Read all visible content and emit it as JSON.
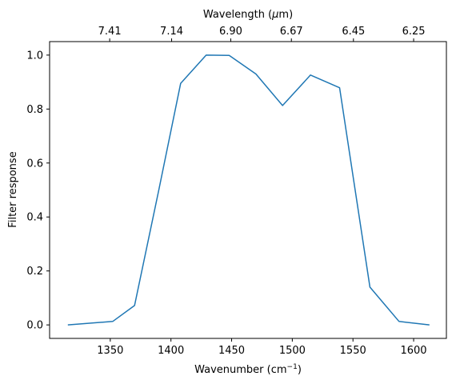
{
  "chart_data": {
    "type": "line",
    "xlabel_text": "Wavenumber (cm",
    "xlabel_sup": "−1",
    "xlabel_close": ")",
    "ylabel": "Filter response",
    "top_xlabel_prefix": "Wavelength (",
    "top_xlabel_mu": "μ",
    "top_xlabel_suffix": "m)",
    "xlim": [
      1300,
      1627
    ],
    "ylim": [
      -0.05,
      1.05
    ],
    "x_ticks": [
      1350,
      1400,
      1450,
      1500,
      1550,
      1600
    ],
    "x_tick_labels": [
      "1350",
      "1400",
      "1450",
      "1500",
      "1550",
      "1600"
    ],
    "y_ticks": [
      0.0,
      0.2,
      0.4,
      0.6,
      0.8,
      1.0
    ],
    "y_tick_labels": [
      "0.0",
      "0.2",
      "0.4",
      "0.6",
      "0.8",
      "1.0"
    ],
    "top_ticks": [
      7.41,
      7.14,
      6.9,
      6.67,
      6.45,
      6.25
    ],
    "top_tick_labels": [
      "7.41",
      "7.14",
      "6.90",
      "6.67",
      "6.45",
      "6.25"
    ],
    "grid": false,
    "line_color": "#1f77b4",
    "series": [
      {
        "x": [
          1315,
          1352,
          1370,
          1390,
          1408,
          1429,
          1448,
          1470,
          1492,
          1515,
          1539,
          1564,
          1588,
          1613
        ],
        "y": [
          0.0,
          0.013,
          0.072,
          0.5,
          0.895,
          1.0,
          0.999,
          0.93,
          0.813,
          0.926,
          0.879,
          0.14,
          0.013,
          0.0
        ]
      }
    ]
  }
}
